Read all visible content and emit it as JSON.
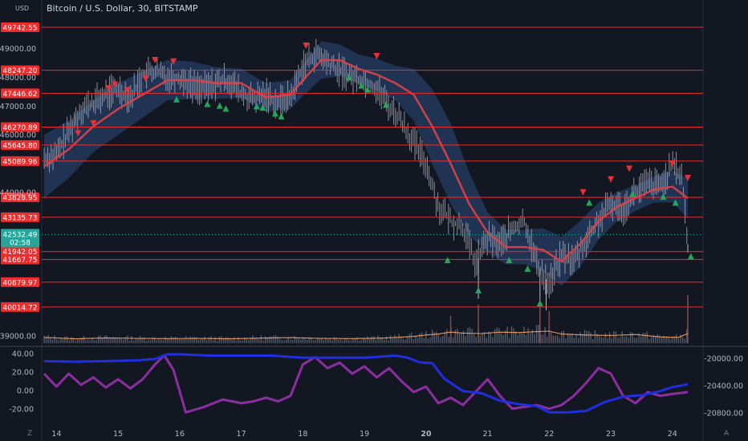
{
  "title": "Bitcoin / U.S. Dollar, 30, BITSTAMP",
  "currency": "USD",
  "current_price": {
    "value": "42532.49",
    "countdown": "02:58"
  },
  "footer": {
    "left": "Z",
    "right": "A"
  },
  "colors": {
    "bg": "#131722",
    "price": "#b8bcc8",
    "ma": "#e0434a",
    "band": "#2b4a7a",
    "level": "#f02b2b",
    "up": "#26a65b",
    "down": "#e8303a",
    "volume": "#545b6a",
    "vol_ma": "#e69a60",
    "purple": "#8b2fa0",
    "blue": "#1f2ee0",
    "current": "#26a69a"
  },
  "chart_data": [
    {
      "type": "line",
      "title": "Bitcoin / U.S. Dollar, 30, BITSTAMP",
      "ylabel": "USD",
      "x_ticks": [
        "14",
        "15",
        "16",
        "17",
        "18",
        "19",
        "20",
        "21",
        "22",
        "23",
        "24"
      ],
      "y_ticks": [
        "39000.00",
        "44000.00",
        "46000.00",
        "47000.00",
        "48000.00",
        "49000.00"
      ],
      "ylim": [
        38700,
        50300
      ],
      "levels": [
        {
          "value": 49742.55,
          "label": "49742.55"
        },
        {
          "value": 48247.2,
          "label": "48247.20"
        },
        {
          "value": 47446.62,
          "label": "47446.62"
        },
        {
          "value": 46270.89,
          "label": "46270.89"
        },
        {
          "value": 45645.8,
          "label": "45645.80"
        },
        {
          "value": 45089.96,
          "label": "45089.96"
        },
        {
          "value": 43828.95,
          "label": "43828.95"
        },
        {
          "value": 43135.73,
          "label": "43135.73"
        },
        {
          "value": 41942.05,
          "label": "41942.05"
        },
        {
          "value": 41667.75,
          "label": "41667.75"
        },
        {
          "value": 40879.97,
          "label": "40879.97"
        },
        {
          "value": 40014.72,
          "label": "40014.72"
        }
      ],
      "series": [
        {
          "name": "",
          "kind": "price",
          "x": [
            13.8,
            14.0,
            14.2,
            14.4,
            14.6,
            14.8,
            15.0,
            15.2,
            15.4,
            15.6,
            15.8,
            16.0,
            16.2,
            16.4,
            16.6,
            16.8,
            17.0,
            17.2,
            17.4,
            17.6,
            17.8,
            18.0,
            18.2,
            18.4,
            18.6,
            18.8,
            19.0,
            19.2,
            19.4,
            19.6,
            19.8,
            20.0,
            20.2,
            20.4,
            20.6,
            20.8,
            21.0,
            21.2,
            21.4,
            21.6,
            21.8,
            22.0,
            22.2,
            22.4,
            22.6,
            22.8,
            23.0,
            23.2,
            23.4,
            23.6,
            23.8,
            24.0,
            24.15,
            24.25
          ],
          "y": [
            45200,
            45300,
            46100,
            46900,
            47100,
            47400,
            47600,
            47300,
            48100,
            48200,
            48000,
            48000,
            47700,
            47600,
            47800,
            47900,
            47400,
            47200,
            47400,
            47100,
            47300,
            48400,
            48800,
            48500,
            48200,
            48000,
            47900,
            47600,
            47000,
            46500,
            45700,
            45000,
            43500,
            43000,
            42800,
            41500,
            42400,
            42200,
            42700,
            43000,
            41500,
            40800,
            41800,
            41600,
            42300,
            43000,
            43600,
            43400,
            44000,
            44300,
            44200,
            44900,
            44600,
            42200
          ],
          "low_offset": 600,
          "high_offset": 650
        },
        {
          "name": "",
          "kind": "ma",
          "x": [
            13.8,
            14.2,
            14.6,
            15.0,
            15.4,
            15.8,
            16.2,
            16.6,
            17.0,
            17.4,
            17.8,
            18.0,
            18.3,
            18.6,
            18.9,
            19.2,
            19.5,
            19.8,
            20.1,
            20.4,
            20.7,
            21.0,
            21.3,
            21.6,
            21.9,
            22.2,
            22.5,
            22.8,
            23.1,
            23.4,
            23.7,
            24.0,
            24.25
          ],
          "y": [
            44900,
            45500,
            46300,
            46900,
            47400,
            47900,
            47900,
            47800,
            47800,
            47300,
            47400,
            47900,
            48600,
            48600,
            48300,
            48100,
            47800,
            47400,
            46300,
            45000,
            43600,
            42600,
            42100,
            42100,
            42000,
            41600,
            42200,
            43000,
            43500,
            43800,
            44100,
            44200,
            43800
          ],
          "band": [
            1100,
            1000,
            900,
            900,
            800,
            700,
            650,
            550,
            500,
            500,
            500,
            550,
            650,
            550,
            500,
            550,
            600,
            900,
            1300,
            1400,
            1100,
            700,
            600,
            600,
            750,
            850,
            800,
            650,
            500,
            450,
            450,
            550,
            700
          ]
        }
      ],
      "buy_signals": [
        [
          15.95,
          47240
        ],
        [
          16.45,
          47080
        ],
        [
          16.65,
          47020
        ],
        [
          16.75,
          46920
        ],
        [
          17.25,
          47000
        ],
        [
          17.35,
          46950
        ],
        [
          17.55,
          46750
        ],
        [
          17.65,
          46650
        ],
        [
          18.75,
          48000
        ],
        [
          18.95,
          47720
        ],
        [
          19.05,
          47580
        ],
        [
          19.35,
          47050
        ],
        [
          20.35,
          41650
        ],
        [
          20.85,
          40600
        ],
        [
          21.35,
          41650
        ],
        [
          21.65,
          41350
        ],
        [
          21.85,
          40150
        ],
        [
          22.65,
          43650
        ],
        [
          23.35,
          43950
        ],
        [
          23.85,
          43850
        ],
        [
          24.05,
          43650
        ],
        [
          24.3,
          41780
        ]
      ],
      "sell_signals": [
        [
          14.35,
          46050
        ],
        [
          14.6,
          46400
        ],
        [
          14.85,
          47620
        ],
        [
          14.95,
          47750
        ],
        [
          15.15,
          47550
        ],
        [
          15.45,
          47950
        ],
        [
          15.6,
          48600
        ],
        [
          15.9,
          48550
        ],
        [
          18.05,
          49100
        ],
        [
          19.2,
          48740
        ],
        [
          22.55,
          44000
        ],
        [
          23.0,
          44450
        ],
        [
          23.3,
          44820
        ],
        [
          24.0,
          45000
        ],
        [
          24.25,
          44500
        ]
      ]
    },
    {
      "type": "bar",
      "series": [
        {
          "name": "",
          "kind": "volume",
          "x": [],
          "values": []
        },
        {
          "name": "",
          "kind": "volume_ma",
          "x": [
            13.8,
            14.3,
            14.8,
            15.3,
            15.8,
            16.3,
            16.8,
            17.3,
            17.8,
            18.3,
            18.8,
            19.3,
            19.8,
            20.0,
            20.2,
            20.4,
            20.6,
            20.9,
            21.2,
            21.5,
            21.8,
            22.0,
            22.2,
            22.6,
            23.0,
            23.4,
            23.8,
            24.1,
            24.25
          ],
          "values": [
            120,
            90,
            110,
            100,
            95,
            100,
            90,
            105,
            115,
            100,
            95,
            105,
            140,
            170,
            190,
            230,
            210,
            200,
            230,
            220,
            240,
            250,
            190,
            170,
            160,
            180,
            130,
            120,
            200
          ]
        }
      ]
    },
    {
      "type": "line",
      "ylim_left": [
        -35,
        45
      ],
      "ylim_right": [
        -20940,
        -19860
      ],
      "y_ticks_left": [
        "40.00",
        "20.00",
        "0.00",
        "-20.00"
      ],
      "y_ticks_right": [
        "-20000.00",
        "-20400.00",
        "-20800.00"
      ],
      "series": [
        {
          "name": "",
          "kind": "blue",
          "axis": "right",
          "x": [
            13.8,
            14.3,
            14.8,
            15.3,
            15.6,
            15.8,
            16.0,
            16.5,
            17.0,
            17.5,
            18.0,
            18.5,
            19.0,
            19.5,
            19.7,
            19.9,
            20.1,
            20.3,
            20.6,
            20.9,
            21.2,
            21.5,
            21.8,
            22.0,
            22.3,
            22.6,
            22.9,
            23.2,
            23.5,
            23.8,
            24.0,
            24.25
          ],
          "y": [
            -20040,
            -20050,
            -20040,
            -20030,
            -20010,
            -19940,
            -19940,
            -19960,
            -19960,
            -19960,
            -19990,
            -19990,
            -19990,
            -19960,
            -19990,
            -20060,
            -20070,
            -20300,
            -20480,
            -20510,
            -20620,
            -20670,
            -20700,
            -20790,
            -20790,
            -20770,
            -20640,
            -20560,
            -20540,
            -20480,
            -20420,
            -20380
          ]
        },
        {
          "name": "",
          "kind": "purple",
          "axis": "left",
          "x": [
            13.8,
            14.0,
            14.2,
            14.4,
            14.6,
            14.8,
            15.0,
            15.2,
            15.4,
            15.6,
            15.75,
            15.9,
            16.1,
            16.4,
            16.7,
            17.0,
            17.2,
            17.4,
            17.6,
            17.8,
            18.0,
            18.2,
            18.4,
            18.6,
            18.8,
            19.0,
            19.2,
            19.4,
            19.6,
            19.8,
            20.0,
            20.2,
            20.4,
            20.6,
            20.8,
            21.0,
            21.2,
            21.4,
            21.6,
            21.8,
            22.0,
            22.2,
            22.4,
            22.6,
            22.8,
            23.0,
            23.2,
            23.4,
            23.6,
            23.8,
            24.0,
            24.25
          ],
          "y": [
            18,
            4,
            18,
            6,
            14,
            3,
            12,
            2,
            12,
            28,
            38,
            22,
            -24,
            -18,
            -10,
            -14,
            -12,
            -8,
            -12,
            -6,
            28,
            36,
            24,
            30,
            18,
            26,
            14,
            24,
            10,
            -2,
            4,
            -14,
            -8,
            -16,
            -2,
            12,
            -6,
            -20,
            -18,
            -16,
            -20,
            -16,
            -6,
            8,
            24,
            18,
            -6,
            -14,
            -2,
            -6,
            -4,
            -2
          ]
        }
      ]
    }
  ]
}
